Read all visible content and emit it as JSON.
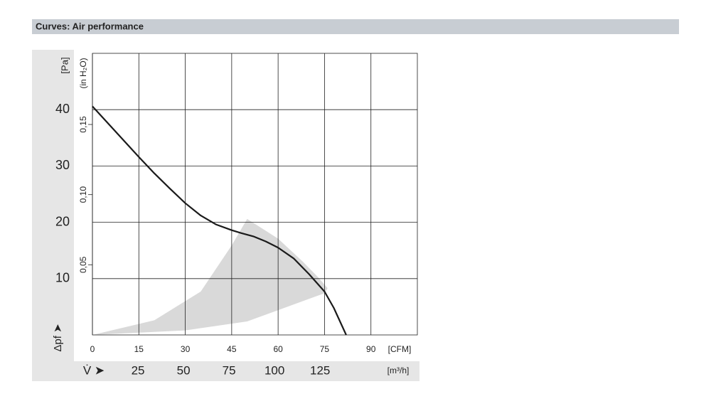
{
  "chart_data": {
    "type": "line",
    "title": "Curves: Air performance",
    "y_label": "[Pa]",
    "y2_label": "(in H₂O)",
    "y_axis_symbol": "Δpf ➤",
    "x_label": "[CFM]",
    "x2_label": "[m³/h]",
    "x2_axis_symbol": "V̇ ➤",
    "xlim": [
      0,
      105
    ],
    "xticks": [
      0,
      15,
      30,
      45,
      60,
      75,
      90
    ],
    "x2lim": [
      0,
      178.4
    ],
    "x2ticks": [
      25,
      50,
      75,
      100,
      125
    ],
    "ylim": [
      0,
      50
    ],
    "yticks": [
      10,
      20,
      30,
      40
    ],
    "y2lim": [
      0,
      0.2007
    ],
    "y2ticks": [
      {
        "value": 0.05,
        "label": "0,05"
      },
      {
        "value": 0.1,
        "label": "0,10"
      },
      {
        "value": 0.15,
        "label": "0,15"
      }
    ],
    "grid": true,
    "curve": {
      "color": "#1a1a1a",
      "x": [
        0,
        5,
        10,
        15,
        20,
        25,
        30,
        35,
        40,
        45,
        48,
        52,
        56,
        60,
        65,
        70,
        75,
        78,
        82
      ],
      "y": [
        40.6,
        37.6,
        34.6,
        31.6,
        28.7,
        26,
        23.4,
        21.2,
        19.6,
        18.6,
        18.1,
        17.5,
        16.6,
        15.5,
        13.6,
        10.8,
        7.7,
        4.8,
        0
      ]
    },
    "region": {
      "color": "#d9d9d9",
      "x": [
        0,
        30,
        50,
        70,
        75,
        76,
        73,
        68,
        60,
        50,
        45,
        35,
        20,
        0
      ],
      "y": [
        0,
        0.8,
        2.4,
        6.4,
        7.4,
        8.3,
        10.2,
        13,
        17.1,
        20.6,
        15.9,
        7.7,
        2.6,
        0
      ]
    }
  }
}
